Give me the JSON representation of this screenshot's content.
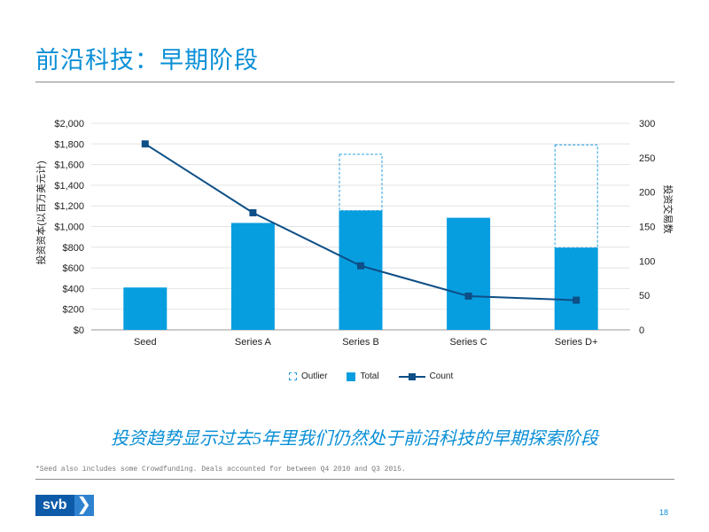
{
  "title": "前沿科技：早期阶段",
  "chart_data": {
    "type": "bar",
    "categories": [
      "Seed",
      "Series A",
      "Series B",
      "Series C",
      "Series D+"
    ],
    "series": [
      {
        "name": "Total",
        "kind": "bar",
        "axis": "left",
        "values": [
          410,
          1035,
          1155,
          1085,
          795
        ]
      },
      {
        "name": "Outlier",
        "kind": "bar-outline",
        "axis": "left",
        "values": [
          0,
          0,
          545,
          0,
          995
        ]
      },
      {
        "name": "Count",
        "kind": "line",
        "axis": "right",
        "values": [
          270,
          170,
          93,
          49,
          43
        ]
      }
    ],
    "ylabel": "投资资本(以百万美元计)",
    "y2label": "投资交易数",
    "ylim": [
      0,
      2000
    ],
    "y2lim": [
      0,
      300
    ],
    "y_ticks": [
      0,
      200,
      400,
      600,
      800,
      1000,
      1200,
      1400,
      1600,
      1800,
      2000
    ],
    "y_tick_labels": [
      "$0",
      "$200",
      "$400",
      "$600",
      "$800",
      "$1,000",
      "$1,200",
      "$1,400",
      "$1,600",
      "$1,800",
      "$2,000"
    ],
    "y2_ticks": [
      0,
      50,
      100,
      150,
      200,
      250,
      300
    ],
    "y2_tick_labels": [
      "0",
      "50",
      "100",
      "150",
      "200",
      "250",
      "300"
    ],
    "legend": [
      "Outlier",
      "Total",
      "Count"
    ],
    "legend_position": "bottom-center",
    "grid": true
  },
  "subtitle": "投资趋势显示过去5年里我们仍然处于前沿科技的早期探索阶段",
  "footnote": "*Seed also includes some Crowdfunding. Deals accounted for between Q4 2010 and Q3 2015.",
  "logo_text": "svb",
  "logo_chevron": "❯",
  "page_number": "18",
  "colors": {
    "accent": "#0a8fd6",
    "bar": "#079ee0",
    "line": "#0d4f86",
    "outlier": "#2aa0e0",
    "logo": "#0d5aa8"
  }
}
